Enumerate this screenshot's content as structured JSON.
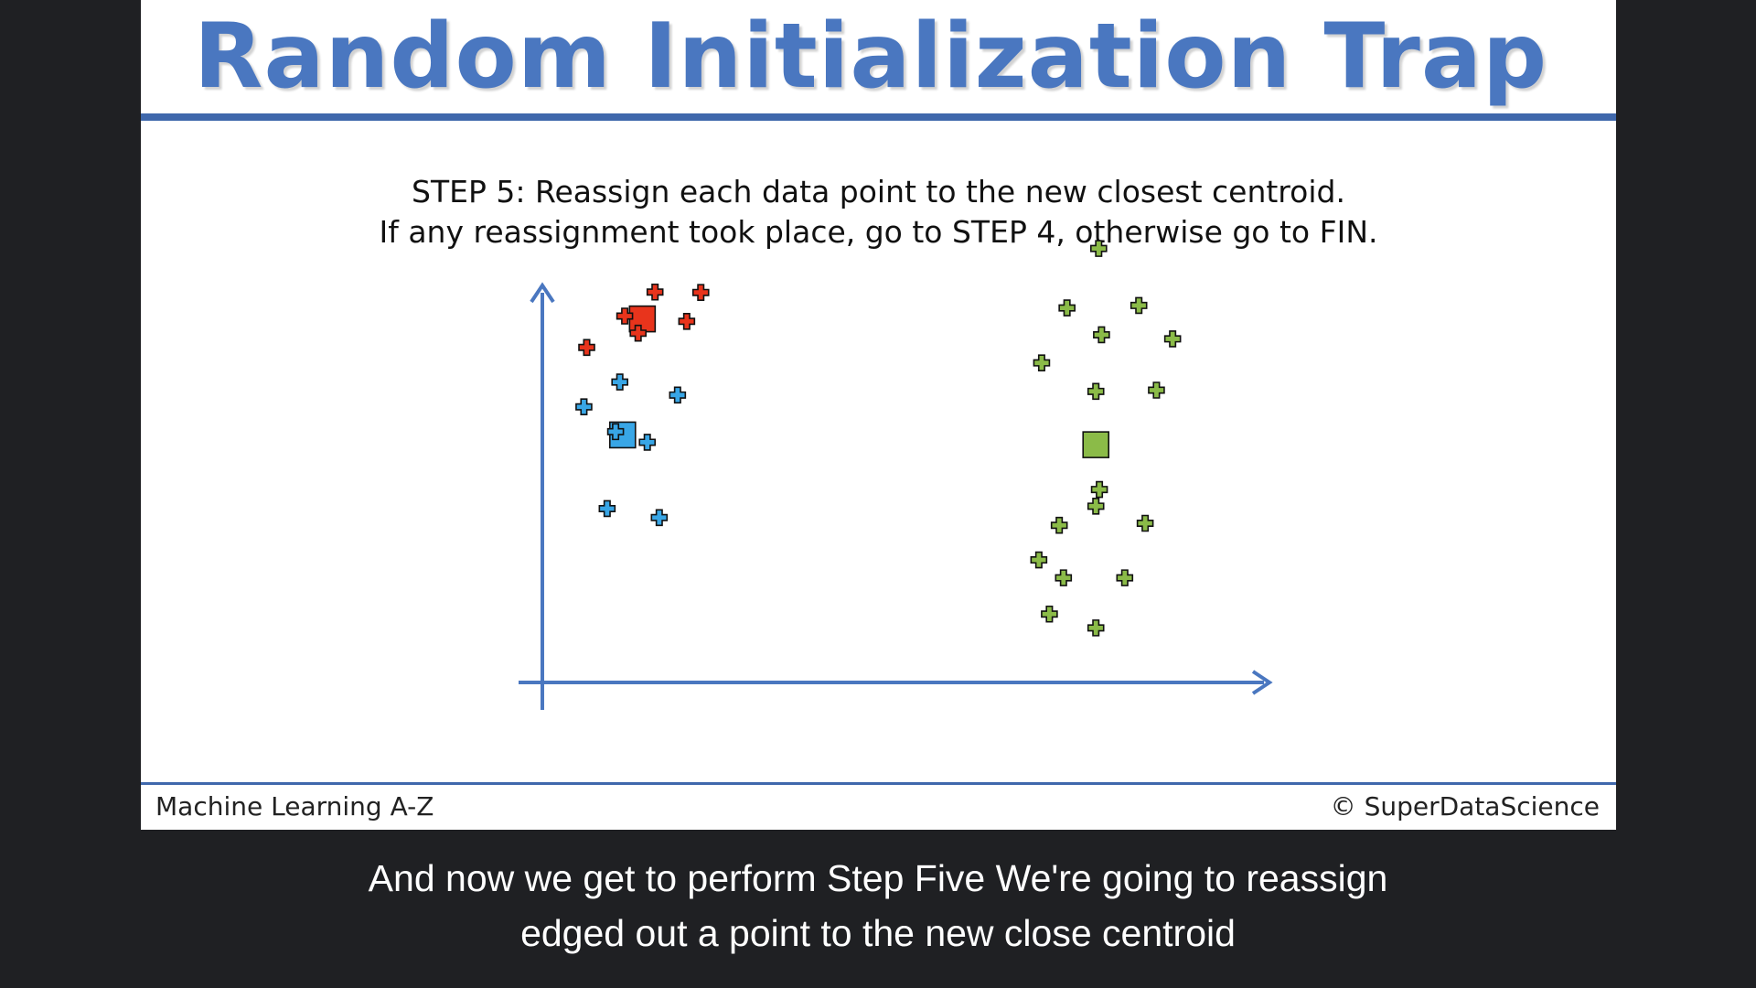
{
  "slide": {
    "title": "Random Initialization Trap",
    "step_line1_label": "STEP 5:",
    "step_line1_text": " Reassign each data point to the new closest centroid.",
    "step_line2": "If any reassignment took place, go to STEP 4, otherwise go to FIN.",
    "footer_left": "Machine Learning A-Z",
    "footer_right": "© SuperDataScience"
  },
  "caption": {
    "line1": "And now we get to perform Step Five We're going to reassign",
    "line2": "edged out a point to the new close centroid"
  },
  "chart_data": {
    "type": "scatter",
    "title": "",
    "xlabel": "",
    "ylabel": "",
    "grid": false,
    "series": [
      {
        "color": "#e8341c",
        "marker": "plus",
        "points": [
          [
            16.0,
            95.9
          ],
          [
            22.5,
            95.8
          ],
          [
            11.7,
            90.0
          ],
          [
            20.5,
            88.7
          ],
          [
            13.6,
            85.8
          ],
          [
            6.3,
            82.3
          ]
        ],
        "centroid": [
          14.2,
          89.3
        ]
      },
      {
        "color": "#38a6e6",
        "marker": "plus",
        "points": [
          [
            11.0,
            73.8
          ],
          [
            19.2,
            70.6
          ],
          [
            5.9,
            67.7
          ],
          [
            10.4,
            61.6
          ],
          [
            14.9,
            59.0
          ],
          [
            9.2,
            42.7
          ],
          [
            16.6,
            40.5
          ]
        ],
        "centroid": [
          11.4,
          60.8
        ]
      },
      {
        "color": "#8bbb48",
        "marker": "plus",
        "points": [
          [
            79.0,
            106.6
          ],
          [
            74.5,
            92.0
          ],
          [
            84.7,
            92.6
          ],
          [
            79.4,
            85.4
          ],
          [
            89.5,
            84.4
          ],
          [
            70.9,
            78.5
          ],
          [
            78.6,
            71.5
          ],
          [
            87.2,
            71.8
          ],
          [
            79.1,
            47.4
          ],
          [
            73.4,
            38.6
          ],
          [
            78.6,
            43.3
          ],
          [
            85.6,
            39.1
          ],
          [
            70.5,
            30.1
          ],
          [
            74.0,
            25.7
          ],
          [
            82.7,
            25.7
          ],
          [
            72.0,
            16.8
          ],
          [
            78.6,
            13.4
          ]
        ],
        "centroid": [
          78.6,
          58.4
        ]
      }
    ]
  }
}
